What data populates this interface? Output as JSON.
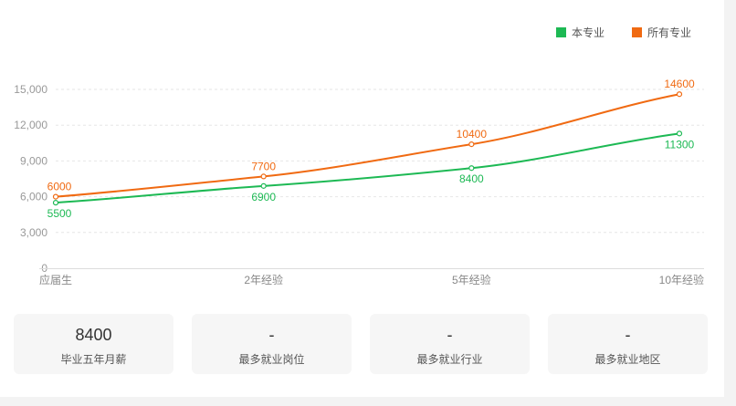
{
  "chart_data": {
    "type": "line",
    "categories": [
      "应届生",
      "2年经验",
      "5年经验",
      "10年经验"
    ],
    "series": [
      {
        "name": "本专业",
        "values": [
          5500,
          6900,
          8400,
          11300
        ],
        "color": "#1db954"
      },
      {
        "name": "所有专业",
        "values": [
          6000,
          7700,
          10400,
          14600
        ],
        "color": "#f06a12"
      }
    ],
    "yticks": [
      0,
      3000,
      6000,
      9000,
      12000,
      15000
    ],
    "ytick_labels": [
      "0",
      "3,000",
      "6,000",
      "9,000",
      "12,000",
      "15,000"
    ],
    "ylim": [
      0,
      15000
    ],
    "grid": true,
    "legend": "top-right"
  },
  "stats": [
    {
      "value": "8400",
      "label": "毕业五年月薪"
    },
    {
      "value": "-",
      "label": "最多就业岗位"
    },
    {
      "value": "-",
      "label": "最多就业行业"
    },
    {
      "value": "-",
      "label": "最多就业地区"
    }
  ]
}
